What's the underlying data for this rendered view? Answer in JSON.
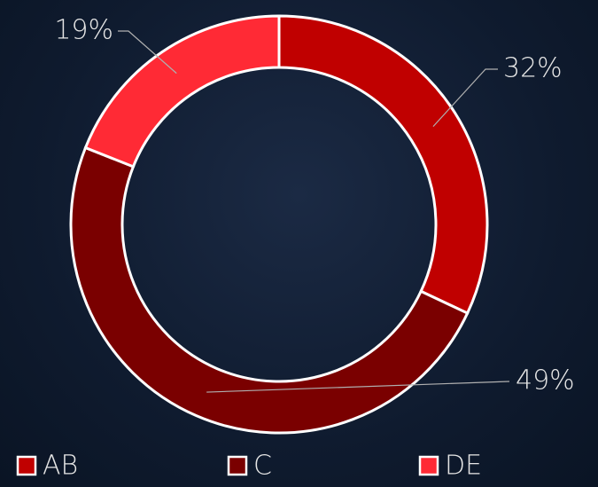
{
  "chart_data": {
    "type": "doughnut",
    "categories": [
      "AB",
      "C",
      "DE"
    ],
    "values": [
      32,
      49,
      19
    ],
    "value_labels": [
      "32%",
      "49%",
      "19%"
    ],
    "colors": [
      "#c00000",
      "#7a0000",
      "#ff2a35"
    ],
    "legend": "bottom"
  }
}
